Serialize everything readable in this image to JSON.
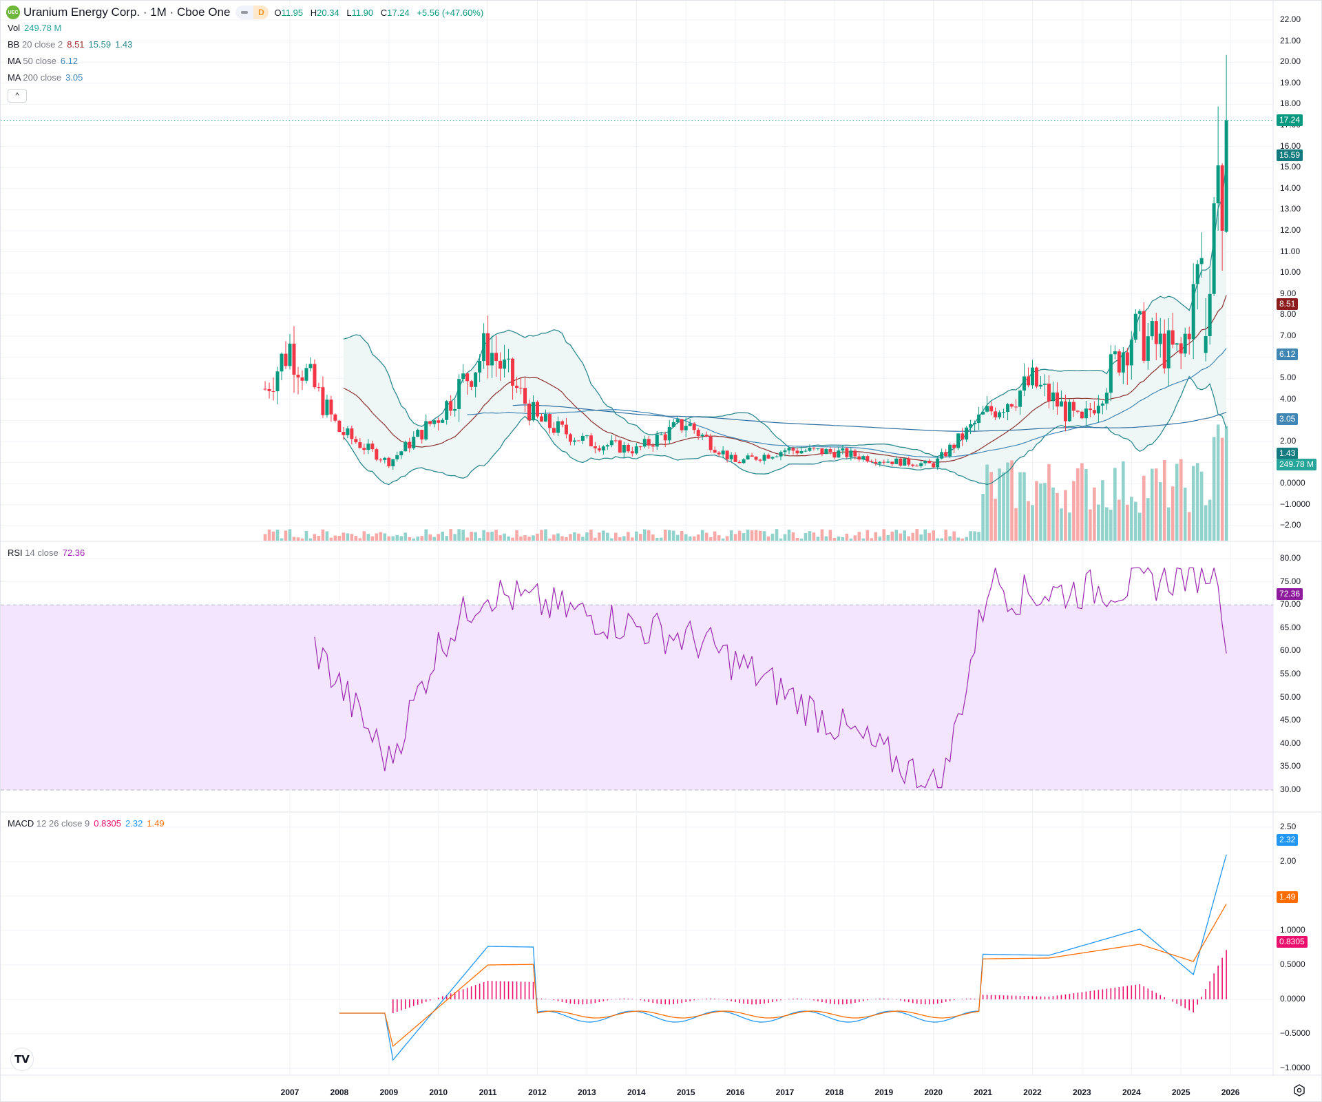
{
  "header": {
    "logo_text": "UEC",
    "symbol_title": "Uranium Energy Corp. · 1M · Cboe One",
    "badge_letter": "D",
    "ohlc": {
      "o_label": "O",
      "o": "11.95",
      "h_label": "H",
      "h": "20.34",
      "l_label": "L",
      "l": "11.90",
      "c_label": "C",
      "c": "17.24",
      "change": "+5.56 (+47.60%)"
    }
  },
  "legends": {
    "vol": {
      "name": "Vol",
      "value": "249.78 M"
    },
    "bb": {
      "name": "BB",
      "params": "20 close 2",
      "basis": "8.51",
      "upper": "15.59",
      "lower": "1.43"
    },
    "ma50": {
      "name": "MA",
      "params": "50 close",
      "value": "6.12"
    },
    "ma200": {
      "name": "MA",
      "params": "200 close",
      "value": "3.05"
    },
    "rsi": {
      "name": "RSI",
      "params": "14 close",
      "value": "72.36"
    },
    "macd": {
      "name": "MACD",
      "params": "12 26 close 9",
      "hist": "0.8305",
      "macd": "2.32",
      "signal": "1.49"
    }
  },
  "collapse_button": "^",
  "colors": {
    "up": "#089981",
    "down": "#f23645",
    "vol_up": "#92d2cc",
    "vol_down": "#f7a9a7",
    "bb_band": "#2c8a8f",
    "bb_basis": "#8b2f2f",
    "bb_fill": "#eef6f6",
    "ma50": "#3f86b5",
    "ma200": "#2f6f9f",
    "rsi": "#9c27b0",
    "rsi_fill": "#f3e5fd",
    "macd": "#2196f3",
    "signal": "#ff6d00",
    "hist": "#ec0e6d",
    "last_price": "#089981",
    "grid": "#f0f2f5"
  },
  "price_axis": {
    "labels": [
      "22.00",
      "21.00",
      "20.00",
      "19.00",
      "18.00",
      "17.00",
      "16.00",
      "15.00",
      "14.00",
      "13.00",
      "12.00",
      "11.00",
      "10.00",
      "9.00",
      "8.00",
      "7.00",
      "5.00",
      "4.00",
      "2.00",
      "0.0000",
      "−1.0000",
      "−2.00"
    ],
    "tags": [
      {
        "text": "17.24",
        "value": 17.24,
        "color": "#089981"
      },
      {
        "text": "15.59",
        "value": 15.59,
        "color": "#137a7f"
      },
      {
        "text": "8.51",
        "value": 8.51,
        "color": "#8b1c1c"
      },
      {
        "text": "6.12",
        "value": 6.12,
        "color": "#3f86b5"
      },
      {
        "text": "3.05",
        "value": 3.05,
        "color": "#3f86b5"
      },
      {
        "text": "1.43",
        "value": 1.43,
        "color": "#137a7f"
      },
      {
        "text": "249.78 M",
        "value": 0.9,
        "color": "#26a69a"
      }
    ]
  },
  "rsi_axis": {
    "labels": [
      "80.00",
      "75.00",
      "70.00",
      "65.00",
      "60.00",
      "55.00",
      "50.00",
      "45.00",
      "40.00",
      "35.00",
      "30.00"
    ],
    "tag": {
      "text": "72.36",
      "value": 72.36,
      "color": "#8e1a9e"
    }
  },
  "macd_axis": {
    "labels": [
      "2.50",
      "2.00",
      "1.0000",
      "0.5000",
      "0.0000",
      "−0.5000",
      "−1.0000"
    ],
    "tags": [
      {
        "text": "2.32",
        "value": 2.32,
        "color": "#2196f3"
      },
      {
        "text": "1.49",
        "value": 1.49,
        "color": "#ff6d00"
      },
      {
        "text": "0.8305",
        "value": 0.8305,
        "color": "#ec0e6d"
      }
    ]
  },
  "x_axis": {
    "years": [
      "2007",
      "2008",
      "2009",
      "2010",
      "2011",
      "2012",
      "2013",
      "2014",
      "2015",
      "2016",
      "2017",
      "2018",
      "2019",
      "2020",
      "2021",
      "2022",
      "2023",
      "2024",
      "2025",
      "2026"
    ]
  },
  "chart_data": [
    {
      "type": "candlestick",
      "title": "Uranium Energy Corp. · 1M · Cboe One",
      "interval": "1M",
      "last_bar": {
        "open": 11.95,
        "high": 20.34,
        "low": 11.9,
        "close": 17.24,
        "change": 5.56,
        "change_pct": 47.6
      },
      "x_range": [
        "2006-06",
        "2026-01"
      ],
      "ylim": [
        -2.6,
        22.5
      ],
      "close_by_year_approx": {
        "2006": 2.5,
        "2007": 6.5,
        "2008": 2.5,
        "2009": 1.0,
        "2010": 3.2,
        "2011": 6.5,
        "2012": 3.0,
        "2013": 2.0,
        "2014": 1.6,
        "2015": 2.9,
        "2016": 1.0,
        "2017": 1.6,
        "2018": 1.5,
        "2019": 1.1,
        "2020": 0.9,
        "2021": 3.2,
        "2022": 4.8,
        "2023": 2.8,
        "2024": 7.2,
        "2025": 6.0,
        "2026": 17.24
      },
      "overlays": {
        "bb_20_close_2": {
          "basis": 8.51,
          "upper": 15.59,
          "lower": 1.43
        },
        "ma_50": 6.12,
        "ma_200": 3.05
      },
      "volume_last": "249.78 M",
      "grid": true
    },
    {
      "type": "line",
      "title": "RSI 14 close",
      "last": 72.36,
      "ylim": [
        30,
        80
      ],
      "bands": {
        "upper": 70,
        "lower": 30
      },
      "notable_points": [
        {
          "x": "2007-07",
          "y": 61
        },
        {
          "x": "2009-01",
          "y": 36
        },
        {
          "x": "2010-01",
          "y": 61
        },
        {
          "x": "2010-12",
          "y": 73
        },
        {
          "x": "2015-05",
          "y": 62
        },
        {
          "x": "2020-03",
          "y": 30
        },
        {
          "x": "2021-03",
          "y": 77
        },
        {
          "x": "2021-08",
          "y": 72
        },
        {
          "x": "2024-01",
          "y": 74
        },
        {
          "x": "2025-10",
          "y": 78
        },
        {
          "x": "2025-12",
          "y": 62
        },
        {
          "x": "2026-01",
          "y": 72.36
        }
      ]
    },
    {
      "type": "line",
      "title": "MACD 12 26 close 9",
      "series": [
        {
          "name": "MACD",
          "last": 2.32
        },
        {
          "name": "Signal",
          "last": 1.49
        },
        {
          "name": "Histogram",
          "last": 0.8305
        }
      ],
      "ylim": [
        -1.15,
        2.65
      ],
      "notable_points": [
        {
          "x": "2009-02",
          "macd": -0.88,
          "signal": -0.68
        },
        {
          "x": "2011-01",
          "macd": 0.77,
          "signal": 0.5
        },
        {
          "x": "2022-05",
          "macd": 0.64,
          "signal": 0.6
        },
        {
          "x": "2024-03",
          "macd": 1.02,
          "signal": 0.8
        },
        {
          "x": "2025-04",
          "macd": 0.36,
          "signal": 0.55
        },
        {
          "x": "2026-01",
          "macd": 2.32,
          "signal": 1.49
        }
      ]
    }
  ]
}
